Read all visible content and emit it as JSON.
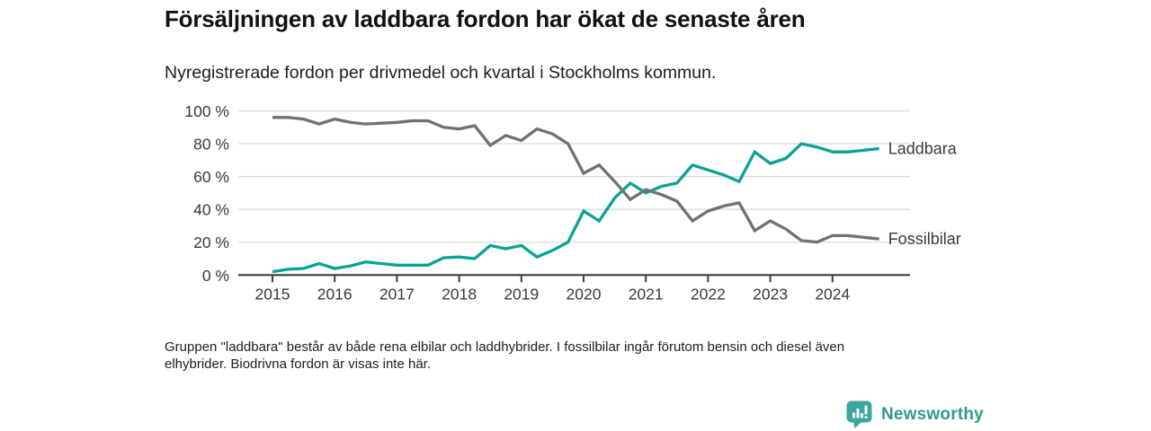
{
  "header": {
    "title": "Försäljningen av laddbara fordon har ökat de senaste åren",
    "subtitle": "Nyregistrerade fordon per drivmedel och kvartal i Stockholms kommun."
  },
  "chart_data": {
    "type": "line",
    "x_start": "2015 Q1",
    "x_end": "2024 Q4",
    "points_per_year": 4,
    "x_tick_labels": [
      "2015",
      "2016",
      "2017",
      "2018",
      "2019",
      "2020",
      "2021",
      "2022",
      "2023",
      "2024"
    ],
    "y_tick_labels": [
      "0 %",
      "20 %",
      "40 %",
      "60 %",
      "80 %",
      "100 %"
    ],
    "y_tick_values": [
      0,
      20,
      40,
      60,
      80,
      100
    ],
    "ylim": [
      0,
      100
    ],
    "grid": "horizontal",
    "legend_position": "line-end-right",
    "series": [
      {
        "name": "Laddbara",
        "color": "#09a295",
        "values": [
          2,
          3.5,
          4,
          7,
          4,
          5.5,
          8,
          7,
          6,
          6,
          6,
          10.5,
          11,
          10,
          18,
          16,
          18,
          11,
          15,
          20,
          39,
          33,
          47,
          56,
          50,
          54,
          56,
          67,
          64,
          61,
          57,
          75,
          68,
          71,
          80,
          78,
          75,
          75,
          76,
          77
        ]
      },
      {
        "name": "Fossilbilar",
        "color": "#717175",
        "values": [
          96,
          96,
          95,
          92,
          95,
          93,
          92,
          92.5,
          93,
          94,
          94,
          90,
          89,
          91,
          79,
          85,
          82,
          89,
          86,
          80,
          62,
          67,
          57,
          46,
          52,
          49,
          45,
          33,
          39,
          42,
          44,
          27,
          33,
          28,
          21,
          20,
          24,
          24,
          23,
          22
        ]
      }
    ],
    "colors": {
      "gridline": "#dcdcdc",
      "axis": "#3d3d3f"
    }
  },
  "footnote": {
    "line1": "Gruppen \"laddbara\" består av både rena elbilar och laddhybrider. I fossilbilar ingår förutom bensin och diesel även",
    "line2": "elhybrider. Biodrivna fordon är visas inte här."
  },
  "branding": {
    "name": "Newsworthy",
    "icon": "bar-chart-badge-icon",
    "icon_color": "#3ba79c",
    "text_color": "#2e9a91"
  }
}
